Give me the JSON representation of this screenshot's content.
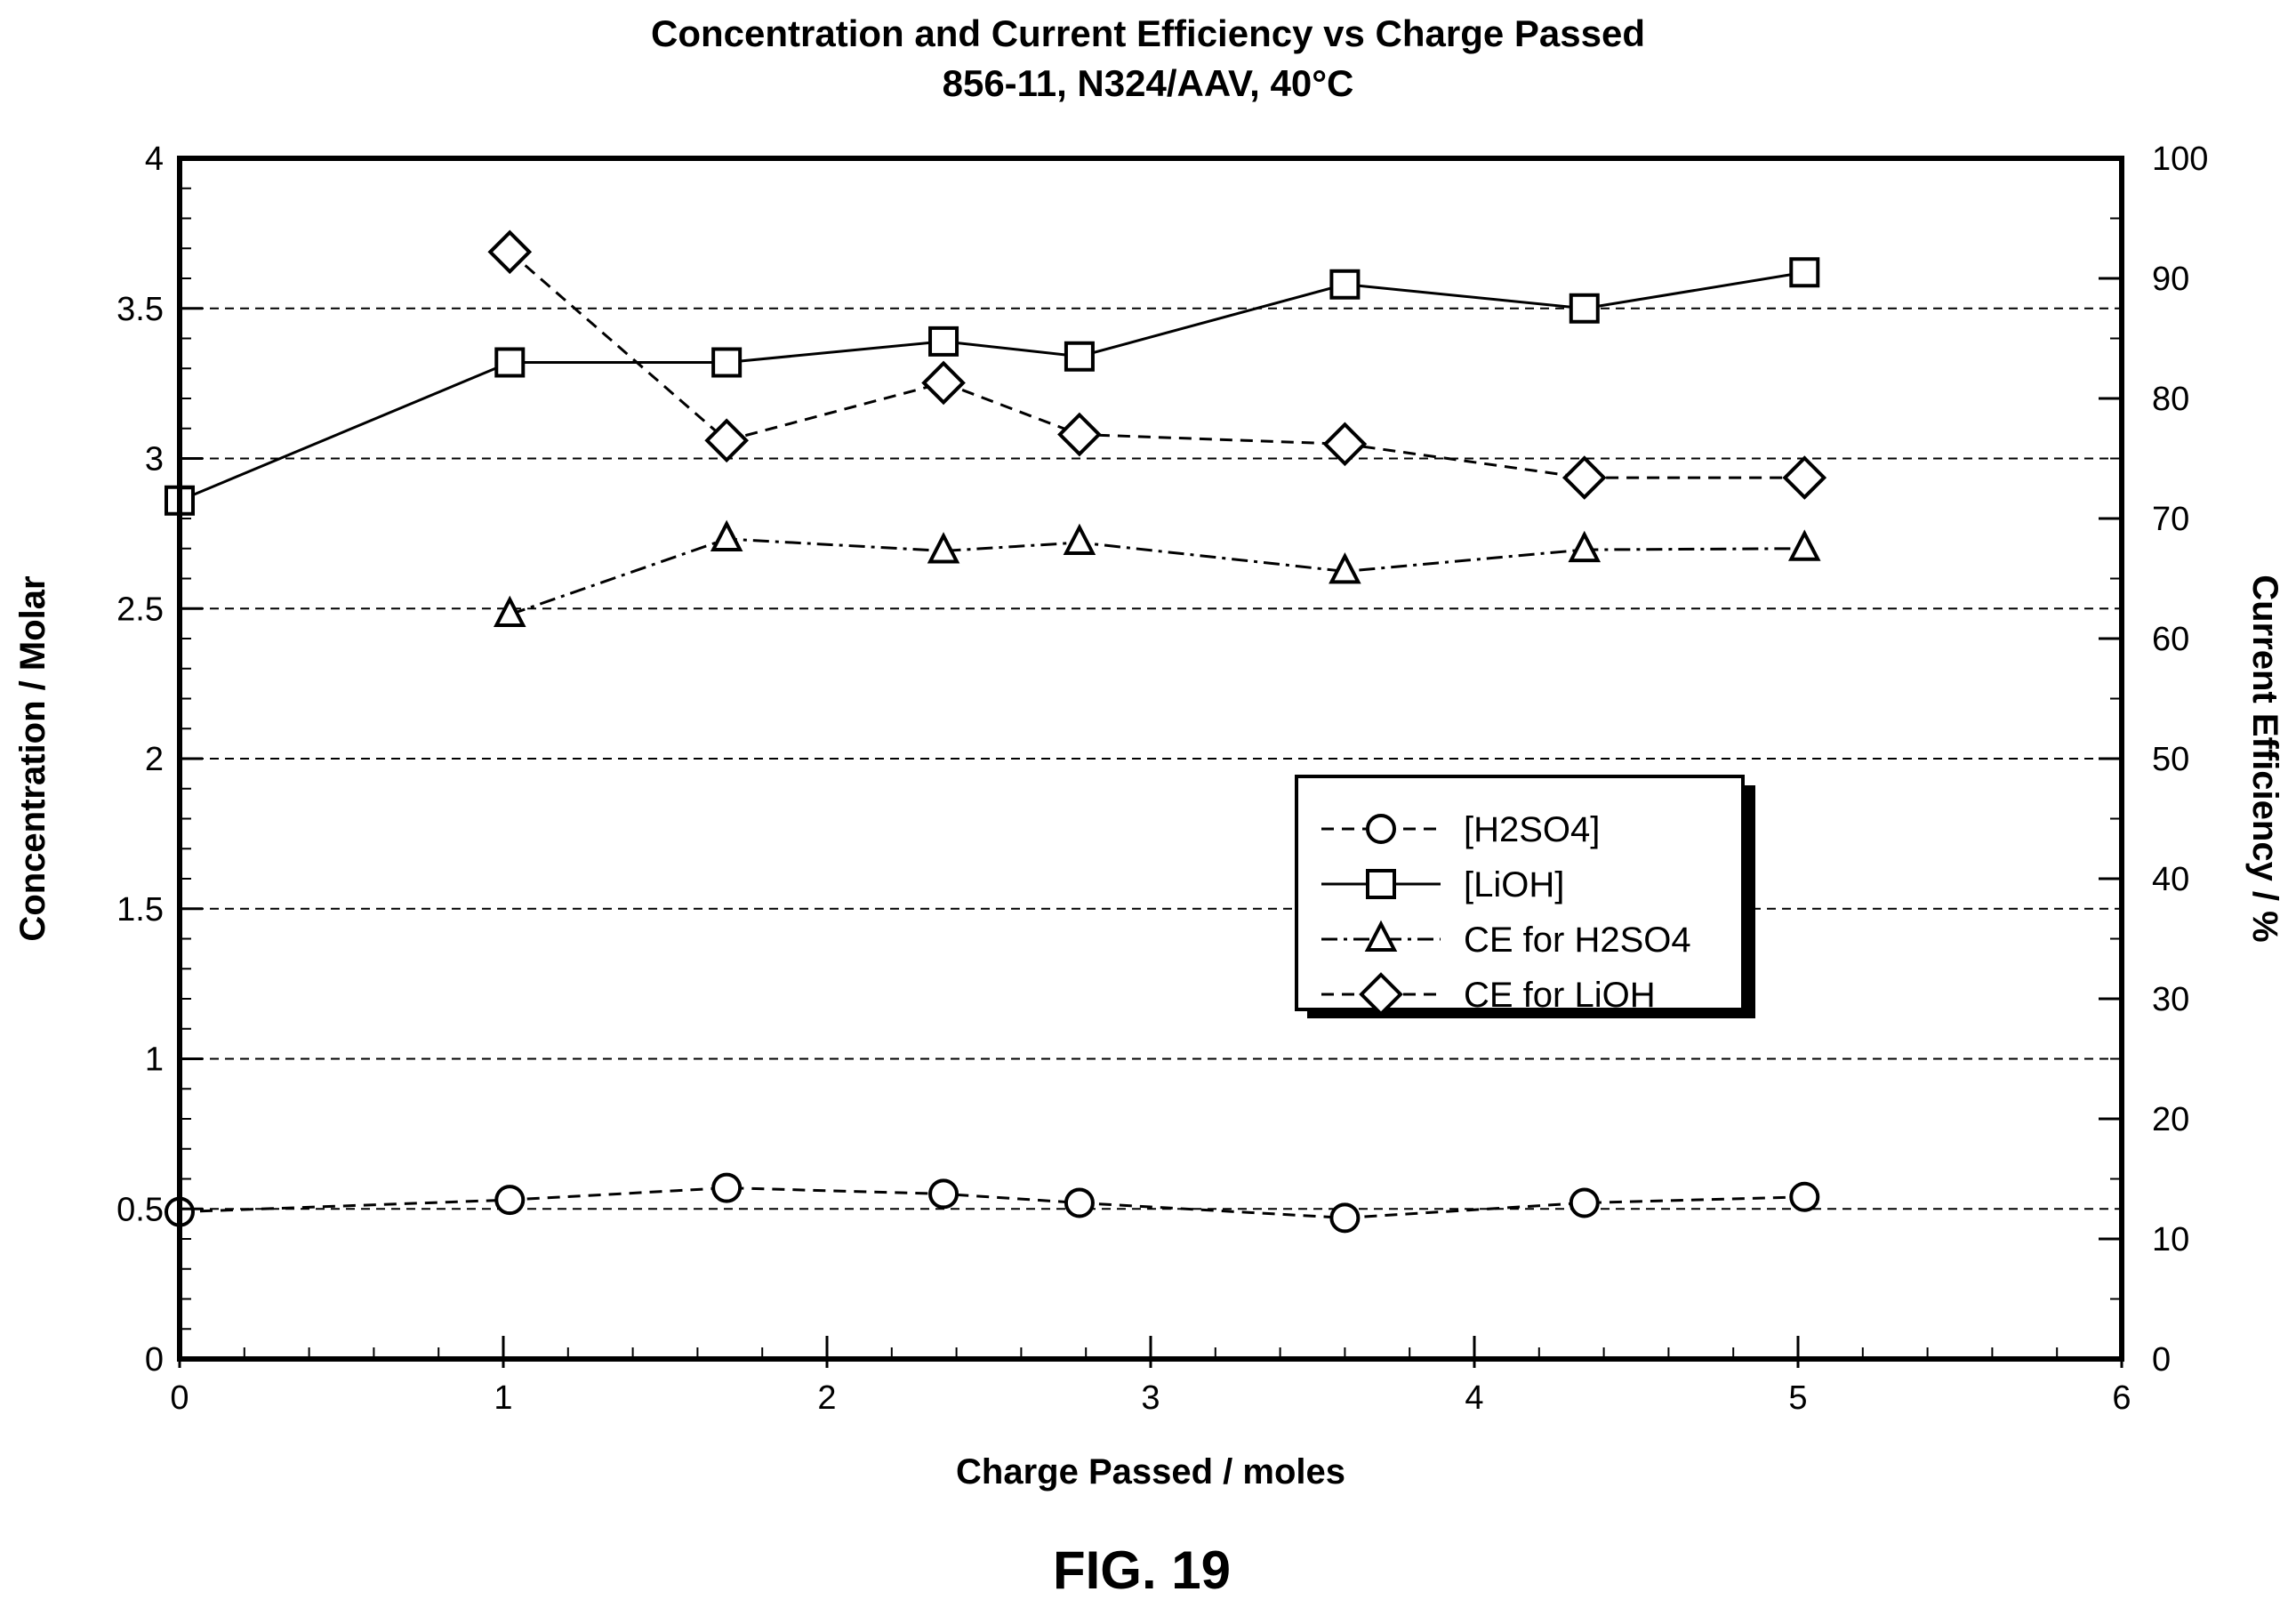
{
  "figure_label": "FIG. 19",
  "chart_data": {
    "type": "line",
    "title": "Concentration and Current Efficiency vs Charge Passed",
    "subtitle": "856-11, N324/AAV, 40°C",
    "xlabel": "Charge Passed / moles",
    "ylabel": "Concentration / Molar",
    "y2label": "Current Efficiency / %",
    "xlim": [
      0,
      6
    ],
    "ylim": [
      0,
      4
    ],
    "y2lim": [
      0,
      100
    ],
    "x_ticks": [
      "0",
      "1",
      "2",
      "3",
      "4",
      "5",
      "6"
    ],
    "y_ticks": [
      "0",
      "0.5",
      "1",
      "1.5",
      "2",
      "2.5",
      "3",
      "3.5",
      "4"
    ],
    "y2_ticks": [
      "0",
      "10",
      "20",
      "30",
      "40",
      "50",
      "60",
      "70",
      "80",
      "90",
      "100"
    ],
    "grid": "horizontal dashed at major left-axis ticks",
    "legend_position": "center-right",
    "series": [
      {
        "name": "[H2SO4]",
        "axis": "left",
        "marker": "circle",
        "line": "dashed",
        "x": [
          0,
          1.02,
          1.69,
          2.36,
          2.78,
          3.6,
          4.34,
          5.02
        ],
        "y": [
          0.49,
          0.53,
          0.57,
          0.55,
          0.52,
          0.47,
          0.52,
          0.54
        ]
      },
      {
        "name": "[LiOH]",
        "axis": "left",
        "marker": "square",
        "line": "solid",
        "x": [
          0,
          1.02,
          1.69,
          2.36,
          2.78,
          3.6,
          4.34,
          5.02
        ],
        "y": [
          2.86,
          3.32,
          3.32,
          3.39,
          3.34,
          3.58,
          3.5,
          3.62
        ]
      },
      {
        "name": "CE for H2SO4",
        "axis": "right",
        "marker": "triangle",
        "line": "dashdot",
        "x": [
          1.02,
          1.69,
          2.36,
          2.78,
          3.6,
          4.34,
          5.02
        ],
        "y": [
          62,
          68.3,
          67.3,
          68,
          65.6,
          67.4,
          67.5
        ]
      },
      {
        "name": "CE for LiOH",
        "axis": "right",
        "marker": "diamond",
        "line": "dashed",
        "x": [
          1.02,
          1.69,
          2.36,
          2.78,
          3.6,
          4.34,
          5.02
        ],
        "y": [
          92.2,
          76.5,
          81.3,
          77,
          76.2,
          73.4,
          73.4
        ]
      }
    ]
  }
}
